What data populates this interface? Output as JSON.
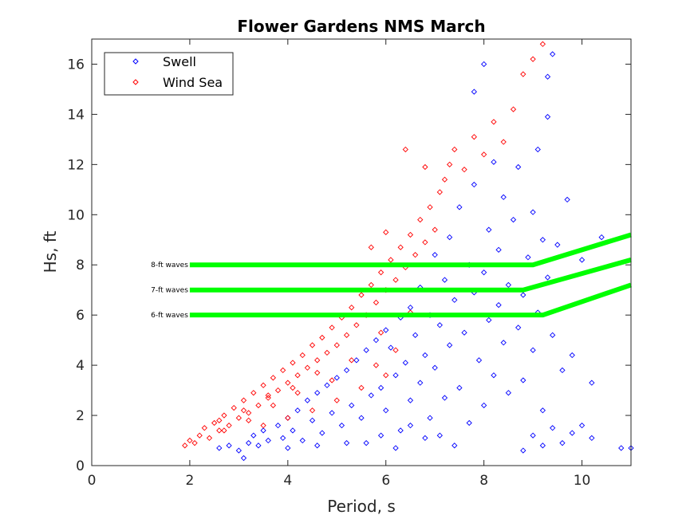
{
  "chart_data": {
    "type": "scatter",
    "title": "Flower Gardens NMS March",
    "xlabel": "Period, s",
    "ylabel": "Hs, ft",
    "xlim": [
      0,
      11
    ],
    "ylim": [
      0,
      17
    ],
    "xticks": [
      0,
      2,
      4,
      6,
      8,
      10
    ],
    "yticks": [
      0,
      2,
      4,
      6,
      8,
      10,
      12,
      14,
      16
    ],
    "grid": false,
    "legend_position": "top-left",
    "series": [
      {
        "name": "Swell",
        "color": "#0000ff",
        "marker": "diamond-open",
        "points": [
          [
            2.6,
            0.7
          ],
          [
            2.8,
            0.8
          ],
          [
            3.0,
            0.6
          ],
          [
            3.1,
            0.3
          ],
          [
            3.2,
            0.9
          ],
          [
            3.3,
            1.2
          ],
          [
            3.4,
            0.8
          ],
          [
            3.5,
            1.4
          ],
          [
            3.6,
            1.0
          ],
          [
            3.8,
            1.6
          ],
          [
            3.9,
            1.1
          ],
          [
            4.0,
            1.9
          ],
          [
            4.1,
            1.4
          ],
          [
            4.2,
            2.2
          ],
          [
            4.3,
            1.0
          ],
          [
            4.4,
            2.6
          ],
          [
            4.5,
            1.8
          ],
          [
            4.6,
            2.9
          ],
          [
            4.7,
            1.3
          ],
          [
            4.8,
            3.2
          ],
          [
            4.9,
            2.1
          ],
          [
            5.0,
            3.5
          ],
          [
            5.1,
            1.6
          ],
          [
            5.2,
            3.8
          ],
          [
            5.3,
            2.4
          ],
          [
            5.4,
            4.2
          ],
          [
            5.5,
            1.9
          ],
          [
            5.6,
            4.6
          ],
          [
            5.7,
            2.8
          ],
          [
            5.8,
            5.0
          ],
          [
            5.9,
            3.1
          ],
          [
            6.0,
            5.4
          ],
          [
            6.0,
            2.2
          ],
          [
            6.1,
            4.7
          ],
          [
            6.2,
            3.6
          ],
          [
            6.3,
            5.9
          ],
          [
            6.3,
            1.4
          ],
          [
            6.4,
            4.1
          ],
          [
            6.5,
            6.3
          ],
          [
            6.5,
            2.6
          ],
          [
            6.6,
            5.2
          ],
          [
            6.7,
            3.3
          ],
          [
            6.7,
            7.1
          ],
          [
            6.8,
            4.4
          ],
          [
            6.9,
            6.0
          ],
          [
            6.9,
            1.9
          ],
          [
            7.0,
            8.4
          ],
          [
            7.0,
            3.9
          ],
          [
            7.1,
            5.6
          ],
          [
            7.2,
            7.4
          ],
          [
            7.2,
            2.7
          ],
          [
            7.3,
            9.1
          ],
          [
            7.3,
            4.8
          ],
          [
            7.4,
            6.6
          ],
          [
            7.5,
            3.1
          ],
          [
            7.5,
            10.3
          ],
          [
            7.6,
            5.3
          ],
          [
            7.7,
            8.0
          ],
          [
            7.7,
            1.7
          ],
          [
            7.8,
            6.9
          ],
          [
            7.8,
            11.2
          ],
          [
            7.9,
            4.2
          ],
          [
            8.0,
            7.7
          ],
          [
            8.0,
            2.4
          ],
          [
            8.1,
            9.4
          ],
          [
            8.1,
            5.8
          ],
          [
            8.2,
            12.1
          ],
          [
            8.2,
            3.6
          ],
          [
            8.3,
            8.6
          ],
          [
            8.3,
            6.4
          ],
          [
            8.4,
            10.7
          ],
          [
            8.4,
            4.9
          ],
          [
            8.5,
            7.2
          ],
          [
            8.5,
            2.9
          ],
          [
            8.6,
            9.8
          ],
          [
            8.7,
            5.5
          ],
          [
            8.7,
            11.9
          ],
          [
            8.8,
            6.8
          ],
          [
            8.8,
            3.4
          ],
          [
            8.9,
            8.3
          ],
          [
            9.0,
            10.1
          ],
          [
            9.0,
            4.6
          ],
          [
            9.1,
            12.6
          ],
          [
            9.1,
            6.1
          ],
          [
            9.2,
            9.0
          ],
          [
            9.2,
            2.2
          ],
          [
            9.3,
            7.5
          ],
          [
            9.3,
            13.9
          ],
          [
            9.4,
            5.2
          ],
          [
            9.5,
            8.8
          ],
          [
            9.6,
            3.8
          ],
          [
            9.7,
            10.6
          ],
          [
            9.8,
            4.4
          ],
          [
            10.0,
            8.2
          ],
          [
            10.2,
            3.3
          ],
          [
            10.4,
            9.1
          ],
          [
            9.4,
            16.4
          ],
          [
            8.0,
            16.0
          ],
          [
            7.8,
            14.9
          ],
          [
            9.3,
            15.5
          ],
          [
            8.8,
            0.6
          ],
          [
            9.0,
            1.2
          ],
          [
            9.2,
            0.8
          ],
          [
            9.4,
            1.5
          ],
          [
            9.6,
            0.9
          ],
          [
            9.8,
            1.3
          ],
          [
            10.0,
            1.6
          ],
          [
            10.2,
            1.1
          ],
          [
            10.8,
            0.7
          ],
          [
            11.0,
            0.7
          ],
          [
            5.6,
            0.9
          ],
          [
            6.2,
            0.7
          ],
          [
            6.8,
            1.1
          ],
          [
            7.4,
            0.8
          ],
          [
            7.1,
            1.2
          ],
          [
            6.5,
            1.6
          ],
          [
            5.9,
            1.2
          ],
          [
            5.2,
            0.9
          ],
          [
            4.6,
            0.8
          ],
          [
            4.0,
            0.7
          ]
        ]
      },
      {
        "name": "Wind Sea",
        "color": "#ff0000",
        "marker": "diamond-open",
        "points": [
          [
            1.9,
            0.8
          ],
          [
            2.0,
            1.0
          ],
          [
            2.1,
            0.9
          ],
          [
            2.2,
            1.2
          ],
          [
            2.3,
            1.5
          ],
          [
            2.4,
            1.1
          ],
          [
            2.5,
            1.7
          ],
          [
            2.6,
            1.4
          ],
          [
            2.7,
            2.0
          ],
          [
            2.8,
            1.6
          ],
          [
            2.9,
            2.3
          ],
          [
            3.0,
            1.9
          ],
          [
            3.1,
            2.6
          ],
          [
            3.2,
            2.1
          ],
          [
            3.3,
            2.9
          ],
          [
            3.4,
            2.4
          ],
          [
            3.5,
            3.2
          ],
          [
            3.6,
            2.7
          ],
          [
            3.7,
            3.5
          ],
          [
            3.8,
            3.0
          ],
          [
            3.9,
            3.8
          ],
          [
            4.0,
            3.3
          ],
          [
            4.1,
            4.1
          ],
          [
            4.2,
            3.6
          ],
          [
            4.3,
            4.4
          ],
          [
            4.4,
            3.9
          ],
          [
            4.5,
            4.8
          ],
          [
            4.6,
            4.2
          ],
          [
            4.7,
            5.1
          ],
          [
            4.8,
            4.5
          ],
          [
            4.9,
            5.5
          ],
          [
            5.0,
            4.8
          ],
          [
            5.1,
            5.9
          ],
          [
            5.2,
            5.2
          ],
          [
            5.3,
            6.3
          ],
          [
            5.4,
            5.6
          ],
          [
            5.5,
            6.8
          ],
          [
            5.6,
            6.0
          ],
          [
            5.7,
            7.2
          ],
          [
            5.8,
            6.5
          ],
          [
            5.9,
            7.7
          ],
          [
            6.0,
            7.0
          ],
          [
            6.1,
            8.2
          ],
          [
            6.2,
            7.4
          ],
          [
            6.3,
            8.7
          ],
          [
            6.4,
            7.9
          ],
          [
            6.5,
            9.2
          ],
          [
            6.6,
            8.4
          ],
          [
            6.7,
            9.8
          ],
          [
            6.8,
            8.9
          ],
          [
            6.9,
            10.3
          ],
          [
            7.0,
            9.4
          ],
          [
            7.1,
            10.9
          ],
          [
            7.2,
            11.4
          ],
          [
            7.3,
            12.0
          ],
          [
            7.4,
            12.6
          ],
          [
            7.6,
            11.8
          ],
          [
            7.8,
            13.1
          ],
          [
            8.0,
            12.4
          ],
          [
            8.2,
            13.7
          ],
          [
            8.4,
            12.9
          ],
          [
            8.6,
            14.2
          ],
          [
            8.8,
            15.6
          ],
          [
            9.0,
            16.2
          ],
          [
            9.2,
            16.8
          ],
          [
            6.4,
            12.6
          ],
          [
            6.8,
            11.9
          ],
          [
            5.5,
            3.1
          ],
          [
            5.0,
            2.6
          ],
          [
            4.5,
            2.2
          ],
          [
            4.0,
            1.9
          ],
          [
            3.5,
            1.6
          ],
          [
            5.8,
            4.0
          ],
          [
            6.2,
            4.6
          ],
          [
            6.0,
            3.6
          ],
          [
            4.9,
            3.4
          ],
          [
            4.2,
            2.9
          ],
          [
            3.7,
            2.4
          ],
          [
            3.2,
            1.8
          ],
          [
            2.7,
            1.4
          ],
          [
            5.3,
            4.2
          ],
          [
            5.9,
            5.3
          ],
          [
            6.5,
            6.1
          ],
          [
            4.6,
            3.7
          ],
          [
            4.1,
            3.1
          ],
          [
            3.6,
            2.8
          ],
          [
            3.1,
            2.2
          ],
          [
            2.6,
            1.8
          ],
          [
            5.7,
            8.7
          ],
          [
            6.0,
            9.3
          ]
        ]
      }
    ],
    "threshold_lines": [
      {
        "label": "8-ft waves",
        "color": "#00ff00",
        "points": [
          [
            2,
            8
          ],
          [
            9.0,
            8
          ],
          [
            11,
            9.2
          ]
        ]
      },
      {
        "label": "7-ft waves",
        "color": "#00ff00",
        "points": [
          [
            2,
            7
          ],
          [
            8.8,
            7
          ],
          [
            11,
            8.2
          ]
        ]
      },
      {
        "label": "6-ft waves",
        "color": "#00ff00",
        "points": [
          [
            2,
            6
          ],
          [
            9.2,
            6
          ],
          [
            11,
            7.2
          ]
        ]
      }
    ]
  }
}
